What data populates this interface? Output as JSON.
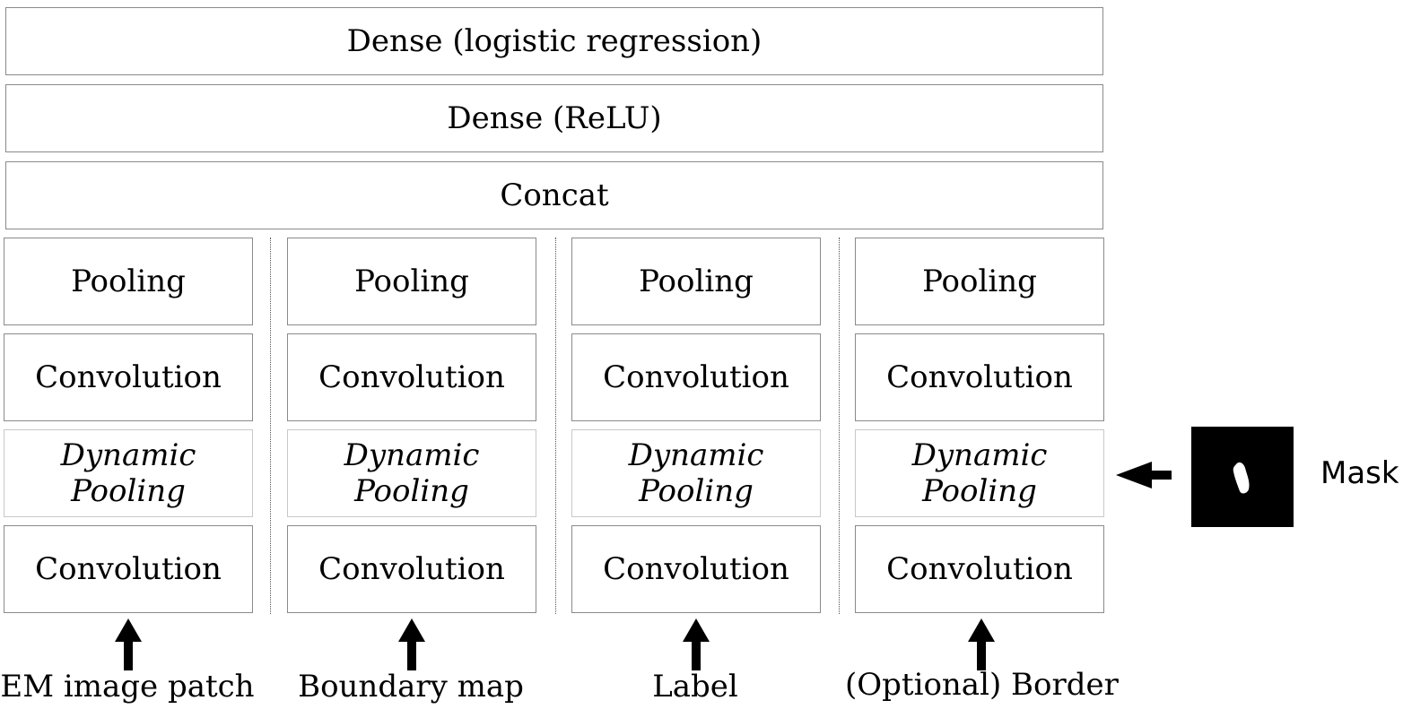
{
  "top_layers": {
    "dense_logistic": "Dense (logistic regression)",
    "dense_relu": "Dense (ReLU)",
    "concat": "Concat"
  },
  "columns": [
    {
      "pooling": "Pooling",
      "convolution_top": "Convolution",
      "dynamic_line1": "Dynamic",
      "dynamic_line2": "Pooling",
      "convolution_bottom": "Convolution",
      "input_label": "EM image patch"
    },
    {
      "pooling": "Pooling",
      "convolution_top": "Convolution",
      "dynamic_line1": "Dynamic",
      "dynamic_line2": "Pooling",
      "convolution_bottom": "Convolution",
      "input_label": "Boundary map"
    },
    {
      "pooling": "Pooling",
      "convolution_top": "Convolution",
      "dynamic_line1": "Dynamic",
      "dynamic_line2": "Pooling",
      "convolution_bottom": "Convolution",
      "input_label": "Label"
    },
    {
      "pooling": "Pooling",
      "convolution_top": "Convolution",
      "dynamic_line1": "Dynamic",
      "dynamic_line2": "Pooling",
      "convolution_bottom": "Convolution",
      "input_label": "(Optional) Border"
    }
  ],
  "mask": {
    "label": "Mask"
  },
  "colors": {
    "box_border": "#8a8a8a",
    "arrow": "#000000",
    "mask_bg": "#000000",
    "mask_blob": "#ffffff"
  }
}
